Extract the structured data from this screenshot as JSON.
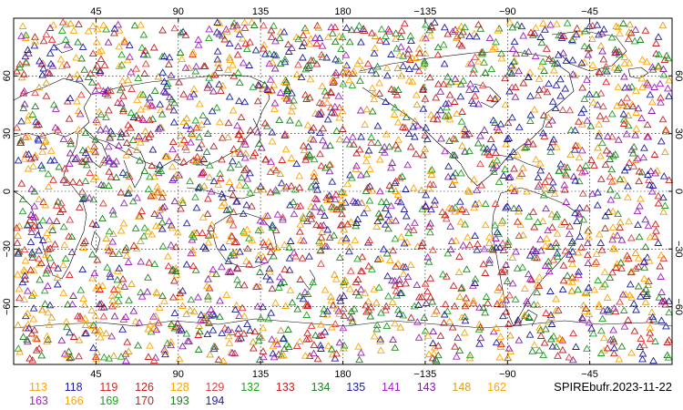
{
  "map": {
    "caption": "SPIREbufr.2023-11-22",
    "lon_labels": [
      "45",
      "90",
      "135",
      "180",
      "−135",
      "−90",
      "−45"
    ],
    "lat_labels": [
      "60",
      "30",
      "0",
      "−30",
      "−60"
    ],
    "lon_range": [
      0,
      360
    ],
    "lat_range": [
      -90,
      90
    ],
    "grid_lines": "dotted",
    "marker": "open-triangle",
    "colors": {
      "coastline": "#000000",
      "frame": "#000000",
      "grid": "#000000"
    }
  },
  "legend": {
    "rows": [
      [
        {
          "label": "113",
          "color": "#ffa500"
        },
        {
          "label": "118",
          "color": "#1e1e9e"
        },
        {
          "label": "119",
          "color": "#e02020"
        },
        {
          "label": "126",
          "color": "#c02020"
        },
        {
          "label": "128",
          "color": "#ffa500"
        },
        {
          "label": "129",
          "color": "#e04040"
        },
        {
          "label": "132",
          "color": "#20a020"
        },
        {
          "label": "133",
          "color": "#c02020"
        },
        {
          "label": "134",
          "color": "#208020"
        },
        {
          "label": "135",
          "color": "#1e1e9e"
        },
        {
          "label": "141",
          "color": "#a020c0"
        },
        {
          "label": "143",
          "color": "#8020a0"
        },
        {
          "label": "148",
          "color": "#d4a020"
        },
        {
          "label": "162",
          "color": "#ffa500"
        }
      ],
      [
        {
          "label": "163",
          "color": "#a020c0"
        },
        {
          "label": "166",
          "color": "#ffa500"
        },
        {
          "label": "169",
          "color": "#20a020"
        },
        {
          "label": "170",
          "color": "#c02020"
        },
        {
          "label": "193",
          "color": "#208020"
        },
        {
          "label": "194",
          "color": "#1e1e9e"
        }
      ]
    ]
  }
}
